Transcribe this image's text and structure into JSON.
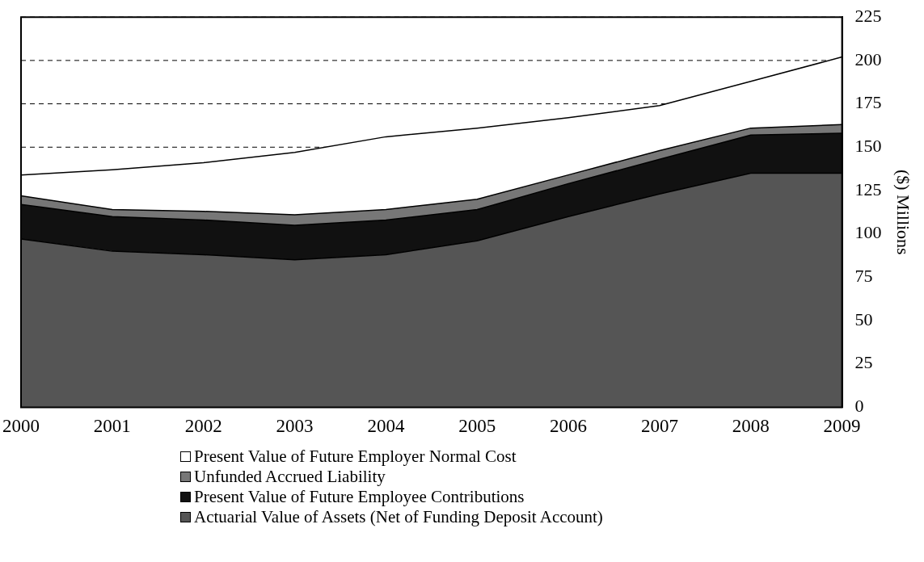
{
  "chart_data": {
    "type": "area",
    "stacked": true,
    "x": [
      2000,
      2001,
      2002,
      2003,
      2004,
      2005,
      2006,
      2007,
      2008,
      2009
    ],
    "xlim": [
      2000,
      2009
    ],
    "xticks": [
      2000,
      2001,
      2002,
      2003,
      2004,
      2005,
      2006,
      2007,
      2008,
      2009
    ],
    "ylim": [
      0,
      225
    ],
    "yticks": [
      0,
      25,
      50,
      75,
      100,
      125,
      150,
      175,
      200,
      225
    ],
    "ylabel": "($) Millions",
    "grid": "y",
    "legend": "bottom",
    "series": [
      {
        "name": "Actuarial Value of Assets (Net of Funding Deposit Account)",
        "color": "#555555",
        "values": [
          97,
          90,
          88,
          85,
          88,
          96,
          110,
          123,
          135,
          135
        ]
      },
      {
        "name": "Present Value of Future Employee Contributions",
        "color": "#111111",
        "values": [
          20,
          20,
          20,
          20,
          20,
          18,
          19,
          20,
          22,
          23
        ]
      },
      {
        "name": "Unfunded Accrued Liability",
        "color": "#777777",
        "values": [
          5,
          4,
          5,
          6,
          6,
          6,
          5,
          5,
          4,
          5
        ]
      },
      {
        "name": "Present Value of Future Employer Normal Cost",
        "color": "#ffffff",
        "values": [
          12,
          23,
          28,
          36,
          42,
          41,
          33,
          26,
          27,
          39
        ]
      }
    ]
  }
}
